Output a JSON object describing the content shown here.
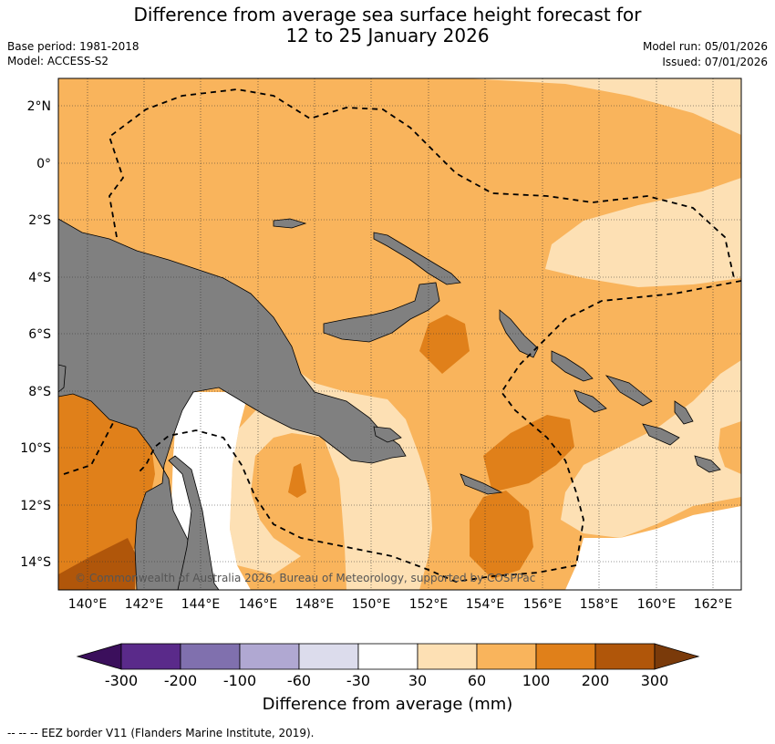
{
  "title_line1": "Difference from average sea surface height forecast for",
  "title_line2": "12 to 25 January 2026",
  "base_period": "Base period: 1981-2018",
  "model": "Model: ACCESS-S2",
  "model_run": "Model run: 05/01/2026",
  "issued": "Issued: 07/01/2026",
  "lat_labels": [
    "2°N",
    "0°",
    "2°S",
    "4°S",
    "6°S",
    "8°S",
    "10°S",
    "12°S",
    "14°S"
  ],
  "lon_labels": [
    "140°E",
    "142°E",
    "144°E",
    "146°E",
    "148°E",
    "150°E",
    "152°E",
    "154°E",
    "156°E",
    "158°E",
    "160°E",
    "162°E"
  ],
  "copyright": "© Commonwealth of Australia 2026, Bureau of Meteorology, supported by COSPPac",
  "colorbar": {
    "title": "Difference from average (mm)",
    "ticks": [
      "-300",
      "-200",
      "-100",
      "-60",
      "-30",
      "30",
      "60",
      "100",
      "200",
      "300"
    ],
    "colors": [
      "#3b0f5c",
      "#5a2a8a",
      "#8070ae",
      "#b0a8d2",
      "#dcdcec",
      "#ffffff",
      "#fde0b4",
      "#f9b45c",
      "#e0801a",
      "#b0560a",
      "#7a3a0a"
    ]
  },
  "footer": "--  --  -- EEZ border V11 (Flanders Marine Institute, 2019).",
  "colors": {
    "land": "#808080",
    "c60": "#f9b45c",
    "c30": "#fde0b4",
    "c100": "#e0801a",
    "c200": "#b0560a"
  }
}
